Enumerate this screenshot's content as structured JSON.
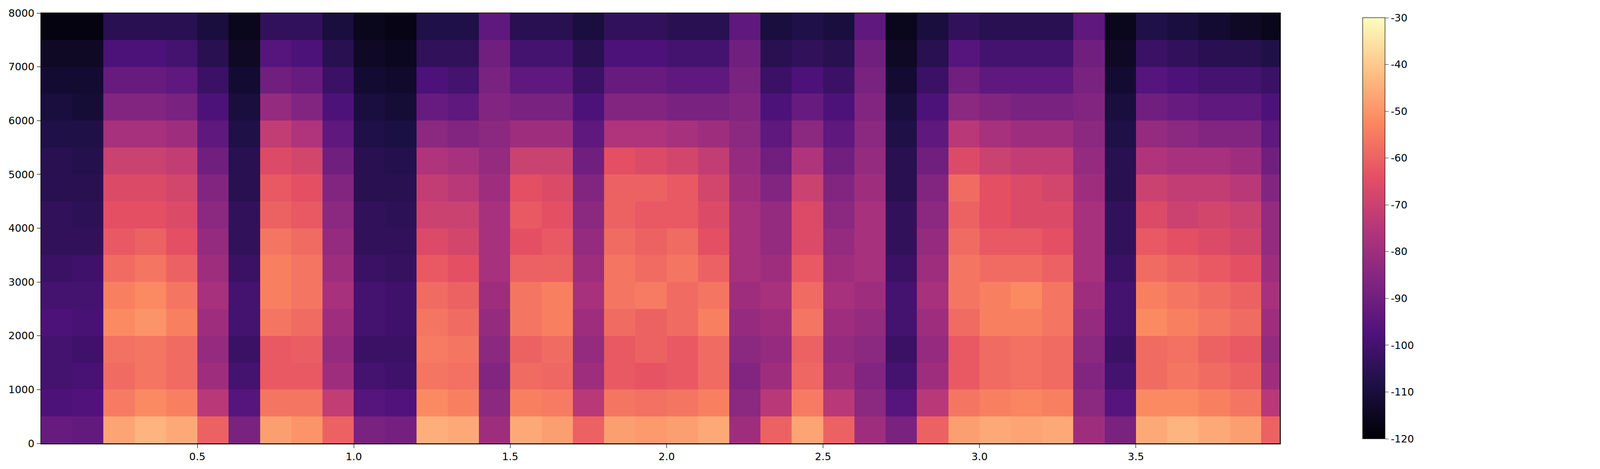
{
  "chart_data": {
    "type": "heatmap",
    "color": "magma",
    "x": [
      0.05,
      0.15,
      0.25,
      0.35,
      0.45,
      0.55,
      0.65,
      0.75,
      0.85,
      0.95,
      1.05,
      1.15,
      1.25,
      1.35,
      1.45,
      1.55,
      1.65,
      1.75,
      1.85,
      1.95,
      2.05,
      2.15,
      2.25,
      2.35,
      2.45,
      2.55,
      2.65,
      2.75,
      2.85,
      2.95,
      3.05,
      3.15,
      3.25,
      3.35,
      3.45,
      3.55,
      3.65,
      3.75,
      3.85,
      3.95
    ],
    "y": [
      250,
      750,
      1250,
      1750,
      2250,
      2750,
      3250,
      3750,
      4250,
      4750,
      5250,
      5750,
      6250,
      6750,
      7250,
      7750
    ],
    "z": [
      [
        -92,
        -93,
        -47,
        -44,
        -46,
        -60,
        -88,
        -48,
        -50,
        -60,
        -88,
        -89,
        -45,
        -46,
        -80,
        -46,
        -48,
        -60,
        -48,
        -49,
        -48,
        -46,
        -80,
        -60,
        -47,
        -60,
        -80,
        -88,
        -60,
        -48,
        -46,
        -47,
        -46,
        -80,
        -88,
        -46,
        -44,
        -46,
        -48,
        -60
      ],
      [
        -98,
        -97,
        -55,
        -52,
        -54,
        -74,
        -96,
        -56,
        -56,
        -72,
        -96,
        -97,
        -52,
        -54,
        -84,
        -54,
        -55,
        -74,
        -56,
        -57,
        -56,
        -54,
        -84,
        -74,
        -55,
        -74,
        -84,
        -96,
        -74,
        -56,
        -54,
        -53,
        -54,
        -84,
        -96,
        -52,
        -52,
        -54,
        -56,
        -74
      ],
      [
        -100,
        -99,
        -58,
        -56,
        -58,
        -80,
        -100,
        -62,
        -62,
        -80,
        -100,
        -101,
        -56,
        -57,
        -86,
        -58,
        -59,
        -80,
        -62,
        -63,
        -62,
        -58,
        -86,
        -80,
        -59,
        -80,
        -86,
        -100,
        -80,
        -62,
        -58,
        -57,
        -58,
        -86,
        -100,
        -58,
        -56,
        -58,
        -60,
        -80
      ],
      [
        -100,
        -101,
        -57,
        -56,
        -58,
        -82,
        -102,
        -62,
        -61,
        -82,
        -102,
        -102,
        -55,
        -56,
        -84,
        -60,
        -58,
        -82,
        -62,
        -60,
        -62,
        -58,
        -84,
        -82,
        -60,
        -82,
        -84,
        -102,
        -82,
        -62,
        -58,
        -57,
        -58,
        -84,
        -102,
        -58,
        -57,
        -60,
        -62,
        -82
      ],
      [
        -98,
        -99,
        -52,
        -50,
        -54,
        -80,
        -100,
        -56,
        -58,
        -80,
        -100,
        -101,
        -56,
        -58,
        -82,
        -56,
        -54,
        -80,
        -58,
        -60,
        -58,
        -54,
        -82,
        -80,
        -56,
        -80,
        -82,
        -100,
        -80,
        -58,
        -54,
        -54,
        -56,
        -82,
        -100,
        -52,
        -54,
        -56,
        -58,
        -80
      ],
      [
        -100,
        -100,
        -54,
        -52,
        -56,
        -78,
        -100,
        -54,
        -56,
        -78,
        -100,
        -101,
        -58,
        -60,
        -80,
        -56,
        -54,
        -78,
        -56,
        -55,
        -58,
        -56,
        -80,
        -78,
        -58,
        -78,
        -80,
        -100,
        -78,
        -56,
        -54,
        -52,
        -56,
        -80,
        -100,
        -54,
        -56,
        -58,
        -60,
        -78
      ],
      [
        -102,
        -101,
        -58,
        -56,
        -60,
        -80,
        -102,
        -54,
        -56,
        -80,
        -102,
        -103,
        -62,
        -64,
        -78,
        -60,
        -60,
        -80,
        -56,
        -58,
        -56,
        -60,
        -78,
        -80,
        -62,
        -80,
        -78,
        -102,
        -80,
        -56,
        -58,
        -58,
        -60,
        -78,
        -102,
        -58,
        -60,
        -62,
        -64,
        -80
      ],
      [
        -104,
        -104,
        -62,
        -60,
        -64,
        -82,
        -104,
        -56,
        -58,
        -82,
        -104,
        -104,
        -66,
        -68,
        -78,
        -64,
        -62,
        -82,
        -58,
        -60,
        -58,
        -64,
        -78,
        -82,
        -66,
        -82,
        -78,
        -104,
        -82,
        -58,
        -62,
        -62,
        -64,
        -78,
        -104,
        -62,
        -64,
        -66,
        -68,
        -82
      ],
      [
        -104,
        -105,
        -64,
        -64,
        -66,
        -84,
        -104,
        -60,
        -62,
        -84,
        -104,
        -105,
        -70,
        -70,
        -78,
        -62,
        -64,
        -84,
        -60,
        -62,
        -62,
        -66,
        -78,
        -82,
        -66,
        -84,
        -78,
        -104,
        -84,
        -60,
        -64,
        -66,
        -66,
        -78,
        -104,
        -66,
        -70,
        -68,
        -70,
        -82
      ],
      [
        -106,
        -106,
        -66,
        -66,
        -68,
        -86,
        -106,
        -62,
        -64,
        -86,
        -106,
        -106,
        -72,
        -74,
        -80,
        -64,
        -66,
        -86,
        -60,
        -60,
        -62,
        -68,
        -80,
        -86,
        -70,
        -86,
        -80,
        -106,
        -86,
        -58,
        -64,
        -66,
        -68,
        -80,
        -106,
        -70,
        -72,
        -72,
        -74,
        -86
      ],
      [
        -106,
        -107,
        -70,
        -70,
        -72,
        -90,
        -106,
        -66,
        -68,
        -90,
        -106,
        -107,
        -76,
        -78,
        -82,
        -70,
        -70,
        -90,
        -64,
        -66,
        -68,
        -72,
        -82,
        -90,
        -76,
        -90,
        -82,
        -106,
        -90,
        -66,
        -70,
        -72,
        -72,
        -82,
        -106,
        -76,
        -78,
        -78,
        -80,
        -90
      ],
      [
        -108,
        -108,
        -78,
        -78,
        -80,
        -94,
        -108,
        -72,
        -76,
        -94,
        -108,
        -109,
        -84,
        -86,
        -84,
        -80,
        -80,
        -94,
        -76,
        -76,
        -78,
        -80,
        -84,
        -94,
        -84,
        -94,
        -84,
        -108,
        -94,
        -74,
        -78,
        -80,
        -80,
        -84,
        -108,
        -82,
        -84,
        -86,
        -86,
        -94
      ],
      [
        -110,
        -111,
        -86,
        -86,
        -88,
        -98,
        -110,
        -82,
        -86,
        -98,
        -110,
        -111,
        -92,
        -94,
        -86,
        -88,
        -88,
        -98,
        -86,
        -86,
        -88,
        -88,
        -86,
        -98,
        -92,
        -98,
        -86,
        -110,
        -98,
        -84,
        -86,
        -88,
        -88,
        -86,
        -110,
        -90,
        -92,
        -94,
        -94,
        -98
      ],
      [
        -112,
        -112,
        -92,
        -92,
        -94,
        -102,
        -112,
        -90,
        -92,
        -102,
        -112,
        -113,
        -98,
        -100,
        -88,
        -94,
        -94,
        -102,
        -92,
        -92,
        -94,
        -94,
        -88,
        -102,
        -98,
        -102,
        -88,
        -112,
        -102,
        -90,
        -94,
        -94,
        -94,
        -88,
        -112,
        -96,
        -98,
        -100,
        -100,
        -102
      ],
      [
        -114,
        -114,
        -98,
        -98,
        -100,
        -106,
        -114,
        -96,
        -98,
        -106,
        -114,
        -115,
        -104,
        -104,
        -90,
        -100,
        -100,
        -106,
        -98,
        -98,
        -100,
        -100,
        -90,
        -106,
        -104,
        -106,
        -90,
        -114,
        -106,
        -96,
        -100,
        -100,
        -100,
        -90,
        -114,
        -102,
        -104,
        -106,
        -106,
        -108
      ],
      [
        -118,
        -118,
        -106,
        -106,
        -106,
        -110,
        -116,
        -104,
        -104,
        -110,
        -116,
        -117,
        -108,
        -108,
        -94,
        -106,
        -106,
        -110,
        -104,
        -104,
        -106,
        -106,
        -94,
        -110,
        -108,
        -110,
        -94,
        -116,
        -110,
        -104,
        -106,
        -106,
        -106,
        -94,
        -116,
        -108,
        -110,
        -112,
        -114,
        -116
      ]
    ],
    "xlim": [
      0,
      3.96
    ],
    "xticks": [
      0.5,
      {
        "value": 1,
        "label": "1.0"
      },
      1.5,
      {
        "value": 2,
        "label": "2.0"
      },
      2.5,
      {
        "value": 3,
        "label": "3.0"
      },
      3.5
    ],
    "ylim": [
      0,
      8000
    ],
    "yticks": [
      0,
      1000,
      2000,
      3000,
      4000,
      5000,
      6000,
      7000,
      8000
    ],
    "zlim": [
      -120,
      -30
    ],
    "zticks": [
      -30,
      -40,
      -50,
      -60,
      -70,
      -80,
      -90,
      -100,
      -110,
      -120
    ],
    "grid": false
  }
}
